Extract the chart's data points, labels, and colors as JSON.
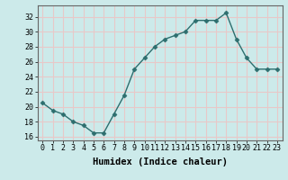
{
  "x": [
    0,
    1,
    2,
    3,
    4,
    5,
    6,
    7,
    8,
    9,
    10,
    11,
    12,
    13,
    14,
    15,
    16,
    17,
    18,
    19,
    20,
    21,
    22,
    23
  ],
  "y": [
    20.5,
    19.5,
    19.0,
    18.0,
    17.5,
    16.5,
    16.5,
    19.0,
    21.5,
    25.0,
    26.5,
    28.0,
    29.0,
    29.5,
    30.0,
    31.5,
    31.5,
    31.5,
    32.5,
    29.0,
    26.5,
    25.0,
    25.0,
    25.0
  ],
  "line_color": "#2d6e6e",
  "marker": "D",
  "marker_size": 2.5,
  "background_color": "#cceaea",
  "grid_color": "#e8c8c8",
  "xlabel": "Humidex (Indice chaleur)",
  "xlim": [
    -0.5,
    23.5
  ],
  "ylim": [
    15.5,
    33.5
  ],
  "yticks": [
    16,
    18,
    20,
    22,
    24,
    26,
    28,
    30,
    32
  ],
  "xticks": [
    0,
    1,
    2,
    3,
    4,
    5,
    6,
    7,
    8,
    9,
    10,
    11,
    12,
    13,
    14,
    15,
    16,
    17,
    18,
    19,
    20,
    21,
    22,
    23
  ],
  "tick_label_size": 6,
  "xlabel_size": 7.5,
  "line_width": 1.0
}
